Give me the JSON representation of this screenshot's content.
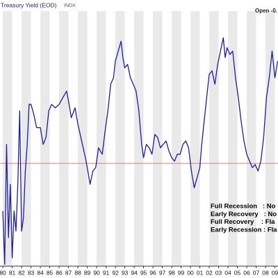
{
  "chart_data": {
    "type": "line",
    "title": "Treasury Yield (EOD)",
    "subtitle": "INDX",
    "open_label": "Open -0.",
    "xlim": [
      1979.7,
      2009.33
    ],
    "ylim": [
      -2.7,
      4
    ],
    "zero_line": 0,
    "zero_line_color": "#e07a7a",
    "xticks": [
      {
        "value": 1980,
        "label": "80"
      },
      {
        "value": 1981,
        "label": "81"
      },
      {
        "value": 1982,
        "label": "82"
      },
      {
        "value": 1983,
        "label": "83"
      },
      {
        "value": 1984,
        "label": "84"
      },
      {
        "value": 1985,
        "label": "85"
      },
      {
        "value": 1986,
        "label": "86"
      },
      {
        "value": 1987,
        "label": "87"
      },
      {
        "value": 1988,
        "label": "88"
      },
      {
        "value": 1989,
        "label": "89"
      },
      {
        "value": 1990,
        "label": "90"
      },
      {
        "value": 1991,
        "label": "91"
      },
      {
        "value": 1992,
        "label": "92"
      },
      {
        "value": 1993,
        "label": "93"
      },
      {
        "value": 1994,
        "label": "94"
      },
      {
        "value": 1995,
        "label": "95"
      },
      {
        "value": 1996,
        "label": "96"
      },
      {
        "value": 1997,
        "label": "97"
      },
      {
        "value": 1998,
        "label": "98"
      },
      {
        "value": 1999,
        "label": "99"
      },
      {
        "value": 2000,
        "label": "00"
      },
      {
        "value": 2001,
        "label": "01"
      },
      {
        "value": 2002,
        "label": "02"
      },
      {
        "value": 2003,
        "label": "03"
      },
      {
        "value": 2004,
        "label": "04"
      },
      {
        "value": 2005,
        "label": "05"
      },
      {
        "value": 2006,
        "label": "06"
      },
      {
        "value": 2007,
        "label": "07"
      },
      {
        "value": 2008,
        "label": "08"
      },
      {
        "value": 2009,
        "label": "09"
      }
    ],
    "legend_notes": [
      "Full Recession   : No",
      "Early Recovery   : No",
      "Full Recovery    : Fla",
      "Early Recession : Fla"
    ],
    "series": [
      {
        "color": "#1c1c9c",
        "x": [
          1980.0,
          1980.2,
          1980.4,
          1980.6,
          1980.8,
          1981.0,
          1981.2,
          1981.4,
          1981.6,
          1981.8,
          1982.0,
          1982.2,
          1982.4,
          1982.6,
          1982.8,
          1983.0,
          1983.3,
          1983.6,
          1984.0,
          1984.3,
          1984.6,
          1984.9,
          1985.2,
          1985.6,
          1986.0,
          1986.4,
          1986.8,
          1987.0,
          1987.3,
          1987.7,
          1988.0,
          1988.4,
          1988.8,
          1989.0,
          1989.3,
          1989.6,
          1989.9,
          1990.2,
          1990.6,
          1990.9,
          1991.2,
          1991.5,
          1991.8,
          1992.0,
          1992.3,
          1992.6,
          1992.8,
          1993.0,
          1993.3,
          1993.6,
          1993.9,
          1994.2,
          1994.5,
          1994.8,
          1995.0,
          1995.3,
          1995.6,
          1995.9,
          1996.2,
          1996.5,
          1996.8,
          1997.1,
          1997.4,
          1997.7,
          1998.0,
          1998.3,
          1998.6,
          1998.9,
          1999.2,
          1999.5,
          1999.8,
          2000.1,
          2000.4,
          2000.7,
          2001.0,
          2001.2,
          2001.5,
          2001.8,
          2002.0,
          2002.3,
          2002.6,
          2002.9,
          2003.2,
          2003.5,
          2003.7,
          2003.9,
          2004.2,
          2004.5,
          2004.8,
          2005.1,
          2005.4,
          2005.7,
          2006.0,
          2006.3,
          2006.6,
          2006.9,
          2007.2,
          2007.5,
          2007.8,
          2008.1,
          2008.4,
          2008.7,
          2009.0,
          2009.3
        ],
        "values": [
          -1.25,
          -2.65,
          0.5,
          -1.95,
          -0.55,
          -2.48,
          -1.25,
          -1.78,
          -0.55,
          1.38,
          -1.78,
          -1.43,
          -0.2,
          0.5,
          1.55,
          1.55,
          1.29,
          0.94,
          0.94,
          0.5,
          0.68,
          1.38,
          1.55,
          1.46,
          1.55,
          1.73,
          1.9,
          1.64,
          1.2,
          1.46,
          1.03,
          0.59,
          0.15,
          -0.11,
          -0.55,
          -0.2,
          -0.11,
          0.41,
          0.24,
          0.85,
          1.38,
          2.08,
          2.25,
          2.69,
          2.95,
          3.21,
          2.78,
          2.51,
          2.6,
          2.25,
          2.08,
          1.9,
          1.38,
          0.5,
          0.15,
          0.5,
          0.41,
          0.24,
          0.76,
          0.68,
          0.41,
          0.5,
          0.59,
          0.33,
          0.15,
          0.06,
          0.24,
          0.24,
          0.5,
          0.59,
          0.41,
          -0.2,
          -0.64,
          -0.38,
          -0.11,
          0.5,
          1.2,
          1.9,
          2.34,
          2.43,
          2.08,
          2.6,
          2.95,
          3.3,
          2.78,
          3.04,
          2.86,
          2.95,
          2.25,
          1.73,
          1.11,
          0.59,
          0.24,
          0.06,
          -0.11,
          -0.03,
          -0.2,
          0.06,
          0.68,
          1.73,
          2.25,
          2.95,
          2.25,
          2.69
        ]
      }
    ]
  }
}
